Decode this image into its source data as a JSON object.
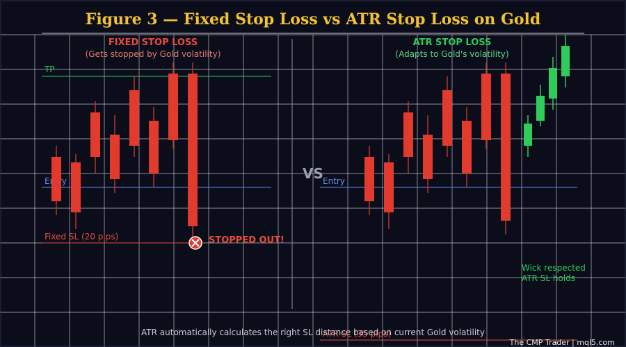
{
  "page": {
    "title": "Figure 3 — Fixed Stop Loss vs ATR Stop Loss on Gold",
    "footer_note": "ATR automatically calculates the right SL distance based on current Gold volatility",
    "credit": "The CMP Trader  |  mql5.com",
    "vs_label": "VS"
  },
  "colors": {
    "background": "#0b0e1a",
    "title": "#f2c230",
    "grid": "#d8dbe3",
    "bear": "#e23b2e",
    "bull": "#2ecc5a",
    "entry": "#5b8def",
    "tp": "#2ecc5a",
    "fixed_sl": "#e04b3f",
    "atr_sl": "#e04b3f",
    "fixed_label": "#e74c3c",
    "fixed_sub": "#e07a70",
    "atr_label": "#2ecc5a",
    "atr_sub": "#5fd38a",
    "wick_note": "#2ecc5a",
    "footer": "#c9ccd6",
    "credit": "#e8e8e8",
    "vs": "#9aa0ad"
  },
  "chart_data": [
    {
      "type": "candlestick",
      "panel": "left",
      "title": "FIXED STOP LOSS",
      "subtitle": "(Gets stopped by Gold volatility)",
      "y_range": [
        0,
        100
      ],
      "levels": {
        "tp": {
          "label": "TP",
          "value": 88
        },
        "entry": {
          "label": "Entry",
          "value": 47
        },
        "stop": {
          "label": "Fixed SL (20 pips)",
          "value": 27
        }
      },
      "candles": [
        {
          "open": 51,
          "close": 35,
          "high": 55,
          "low": 30,
          "dir": "bear"
        },
        {
          "open": 49,
          "close": 31,
          "high": 52,
          "low": 25,
          "dir": "bear"
        },
        {
          "open": 67,
          "close": 51,
          "high": 71,
          "low": 45,
          "dir": "bear"
        },
        {
          "open": 59,
          "close": 43,
          "high": 66,
          "low": 38,
          "dir": "bear"
        },
        {
          "open": 75,
          "close": 55,
          "high": 80,
          "low": 51,
          "dir": "bear"
        },
        {
          "open": 64,
          "close": 45,
          "high": 69,
          "low": 40,
          "dir": "bear"
        },
        {
          "open": 81,
          "close": 57,
          "high": 85,
          "low": 54,
          "dir": "bear"
        },
        {
          "open": 81,
          "close": 26,
          "high": 85,
          "low": 22,
          "dir": "bear"
        }
      ],
      "marker": {
        "label": "STOPPED OUT!",
        "candle_index": 7,
        "value": 26
      }
    },
    {
      "type": "candlestick",
      "panel": "right",
      "title": "ATR STOP LOSS",
      "subtitle": "(Adapts to Gold's volatility)",
      "y_range": [
        0,
        100
      ],
      "levels": {
        "entry": {
          "label": "Entry",
          "value": 47
        },
        "stop": {
          "label": "ATR SL (35 pips)",
          "value": 3
        }
      },
      "candles": [
        {
          "open": 51,
          "close": 35,
          "high": 55,
          "low": 30,
          "dir": "bear"
        },
        {
          "open": 49,
          "close": 31,
          "high": 52,
          "low": 25,
          "dir": "bear"
        },
        {
          "open": 67,
          "close": 51,
          "high": 71,
          "low": 45,
          "dir": "bear"
        },
        {
          "open": 59,
          "close": 43,
          "high": 66,
          "low": 38,
          "dir": "bear"
        },
        {
          "open": 75,
          "close": 55,
          "high": 80,
          "low": 51,
          "dir": "bear"
        },
        {
          "open": 64,
          "close": 45,
          "high": 69,
          "low": 40,
          "dir": "bear"
        },
        {
          "open": 81,
          "close": 57,
          "high": 85,
          "low": 54,
          "dir": "bear"
        },
        {
          "open": 81,
          "close": 28,
          "high": 85,
          "low": 23,
          "dir": "bear"
        },
        {
          "open": 55,
          "close": 63,
          "high": 66,
          "low": 51,
          "dir": "bull"
        },
        {
          "open": 64,
          "close": 73,
          "high": 77,
          "low": 62,
          "dir": "bull"
        },
        {
          "open": 72,
          "close": 83,
          "high": 87,
          "low": 68,
          "dir": "bull"
        },
        {
          "open": 80,
          "close": 91,
          "high": 95,
          "low": 76,
          "dir": "bull"
        }
      ],
      "note_lines": [
        "Wick respected",
        "ATR SL holds"
      ]
    }
  ]
}
